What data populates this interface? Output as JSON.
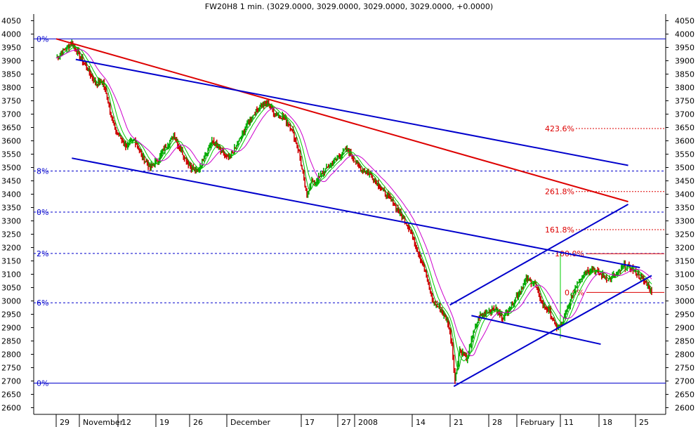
{
  "chart_data": {
    "type": "line",
    "title": "FW20H8 1 min. (3029.0000, 3029.0000, 3029.0000, 3029.0000, +0.0000)",
    "ylim": [
      2575,
      4075
    ],
    "y_ticks": [
      2600,
      2650,
      2700,
      2750,
      2800,
      2850,
      2900,
      2950,
      3000,
      3050,
      3100,
      3150,
      3200,
      3250,
      3300,
      3350,
      3400,
      3450,
      3500,
      3550,
      3600,
      3650,
      3700,
      3750,
      3800,
      3850,
      3900,
      3950,
      4000,
      4050
    ],
    "grid": false,
    "x_tick_labels": [
      "29",
      "November",
      "12",
      "19",
      "26",
      "December",
      "17",
      "27",
      "2008",
      "14",
      "21",
      "28",
      "February",
      "11",
      "18",
      "25"
    ],
    "series": [
      {
        "values": [
          [
            0,
            3910
          ],
          [
            2,
            3940
          ],
          [
            4,
            3965
          ],
          [
            6,
            3920
          ],
          [
            8,
            3870
          ],
          [
            9,
            3840
          ],
          [
            10,
            3815
          ],
          [
            12,
            3820
          ],
          [
            13,
            3760
          ],
          [
            15,
            3640
          ],
          [
            18,
            3580
          ],
          [
            20,
            3605
          ],
          [
            22,
            3540
          ],
          [
            24,
            3500
          ],
          [
            26,
            3530
          ],
          [
            28,
            3580
          ],
          [
            30,
            3620
          ],
          [
            32,
            3560
          ],
          [
            34,
            3510
          ],
          [
            36,
            3480
          ],
          [
            38,
            3550
          ],
          [
            40,
            3600
          ],
          [
            42,
            3560
          ],
          [
            44,
            3530
          ],
          [
            46,
            3580
          ],
          [
            48,
            3640
          ],
          [
            50,
            3690
          ],
          [
            52,
            3730
          ],
          [
            54,
            3740
          ],
          [
            56,
            3700
          ],
          [
            58,
            3690
          ],
          [
            60,
            3650
          ],
          [
            62,
            3560
          ],
          [
            63,
            3470
          ],
          [
            64,
            3390
          ],
          [
            65,
            3450
          ],
          [
            66,
            3440
          ],
          [
            68,
            3480
          ],
          [
            70,
            3510
          ],
          [
            72,
            3540
          ],
          [
            74,
            3570
          ],
          [
            76,
            3530
          ],
          [
            78,
            3490
          ],
          [
            80,
            3480
          ],
          [
            82,
            3440
          ],
          [
            84,
            3400
          ],
          [
            86,
            3370
          ],
          [
            88,
            3320
          ],
          [
            90,
            3280
          ],
          [
            92,
            3200
          ],
          [
            94,
            3120
          ],
          [
            96,
            3000
          ],
          [
            98,
            2970
          ],
          [
            100,
            2920
          ],
          [
            101,
            2840
          ],
          [
            101.8,
            2700
          ],
          [
            103,
            2820
          ],
          [
            105,
            2780
          ],
          [
            106,
            2860
          ],
          [
            108,
            2940
          ],
          [
            110,
            2960
          ],
          [
            112,
            2970
          ],
          [
            114,
            2940
          ],
          [
            116,
            2980
          ],
          [
            118,
            3030
          ],
          [
            120,
            3080
          ],
          [
            122,
            3070
          ],
          [
            124,
            2990
          ],
          [
            126,
            2960
          ],
          [
            127.5,
            2900
          ],
          [
            129,
            2910
          ],
          [
            131,
            2990
          ],
          [
            133,
            3070
          ],
          [
            135,
            3110
          ],
          [
            137,
            3120
          ],
          [
            139,
            3100
          ],
          [
            141,
            3080
          ],
          [
            143,
            3100
          ],
          [
            145,
            3130
          ],
          [
            147,
            3120
          ],
          [
            149,
            3090
          ],
          [
            151,
            3060
          ],
          [
            152,
            3029
          ]
        ]
      }
    ],
    "moving_averages": [
      {
        "color": "#00aa00",
        "period": 6
      },
      {
        "color": "#00cc00",
        "period": 12
      },
      {
        "color": "#cc00cc",
        "period": 22
      }
    ],
    "trendlines": [
      {
        "color": "#dd0000",
        "points": [
          [
            0,
            3982
          ],
          [
            146,
            3372
          ]
        ]
      },
      {
        "color": "#0000cc",
        "points": [
          [
            5,
            3905
          ],
          [
            146,
            3508
          ]
        ]
      },
      {
        "color": "#0000cc",
        "points": [
          [
            4,
            3535
          ],
          [
            149,
            3125
          ]
        ]
      },
      {
        "color": "#0000cc",
        "points": [
          [
            101.5,
            2680
          ],
          [
            152,
            3095
          ]
        ]
      },
      {
        "color": "#0000cc",
        "points": [
          [
            100.5,
            2985
          ],
          [
            146,
            3362
          ]
        ]
      },
      {
        "color": "#0000cc",
        "points": [
          [
            106,
            2945
          ],
          [
            139,
            2838
          ]
        ]
      }
    ],
    "horizontal_levels": [
      {
        "y": 3982,
        "label": "0%",
        "color": "#0000cc",
        "style": "solid"
      },
      {
        "y": 3487,
        "label": "8%",
        "color": "#0000cc",
        "style": "dashed"
      },
      {
        "y": 3333,
        "label": "0%",
        "color": "#0000cc",
        "style": "dashed"
      },
      {
        "y": 3178,
        "label": "2%",
        "color": "#0000cc",
        "style": "dashed"
      },
      {
        "y": 2993,
        "label": "6%",
        "color": "#0000cc",
        "style": "dashed"
      },
      {
        "y": 2692,
        "label": "0%",
        "color": "#0000cc",
        "style": "solid"
      }
    ],
    "fibonacci_levels": [
      {
        "label": "423.6%",
        "y": 3646
      },
      {
        "label": "261.8%",
        "y": 3410
      },
      {
        "label": "161.8%",
        "y": 3267
      },
      {
        "label": "100.0%",
        "y": 3177
      },
      {
        "label": "0.0%",
        "y": 3032
      }
    ],
    "fibonacci_color": "#dd0000",
    "price_bar_colors": {
      "up": "#00aa00",
      "down": "#cc0000"
    },
    "axis_color": "#000000",
    "background": "#ffffff"
  }
}
